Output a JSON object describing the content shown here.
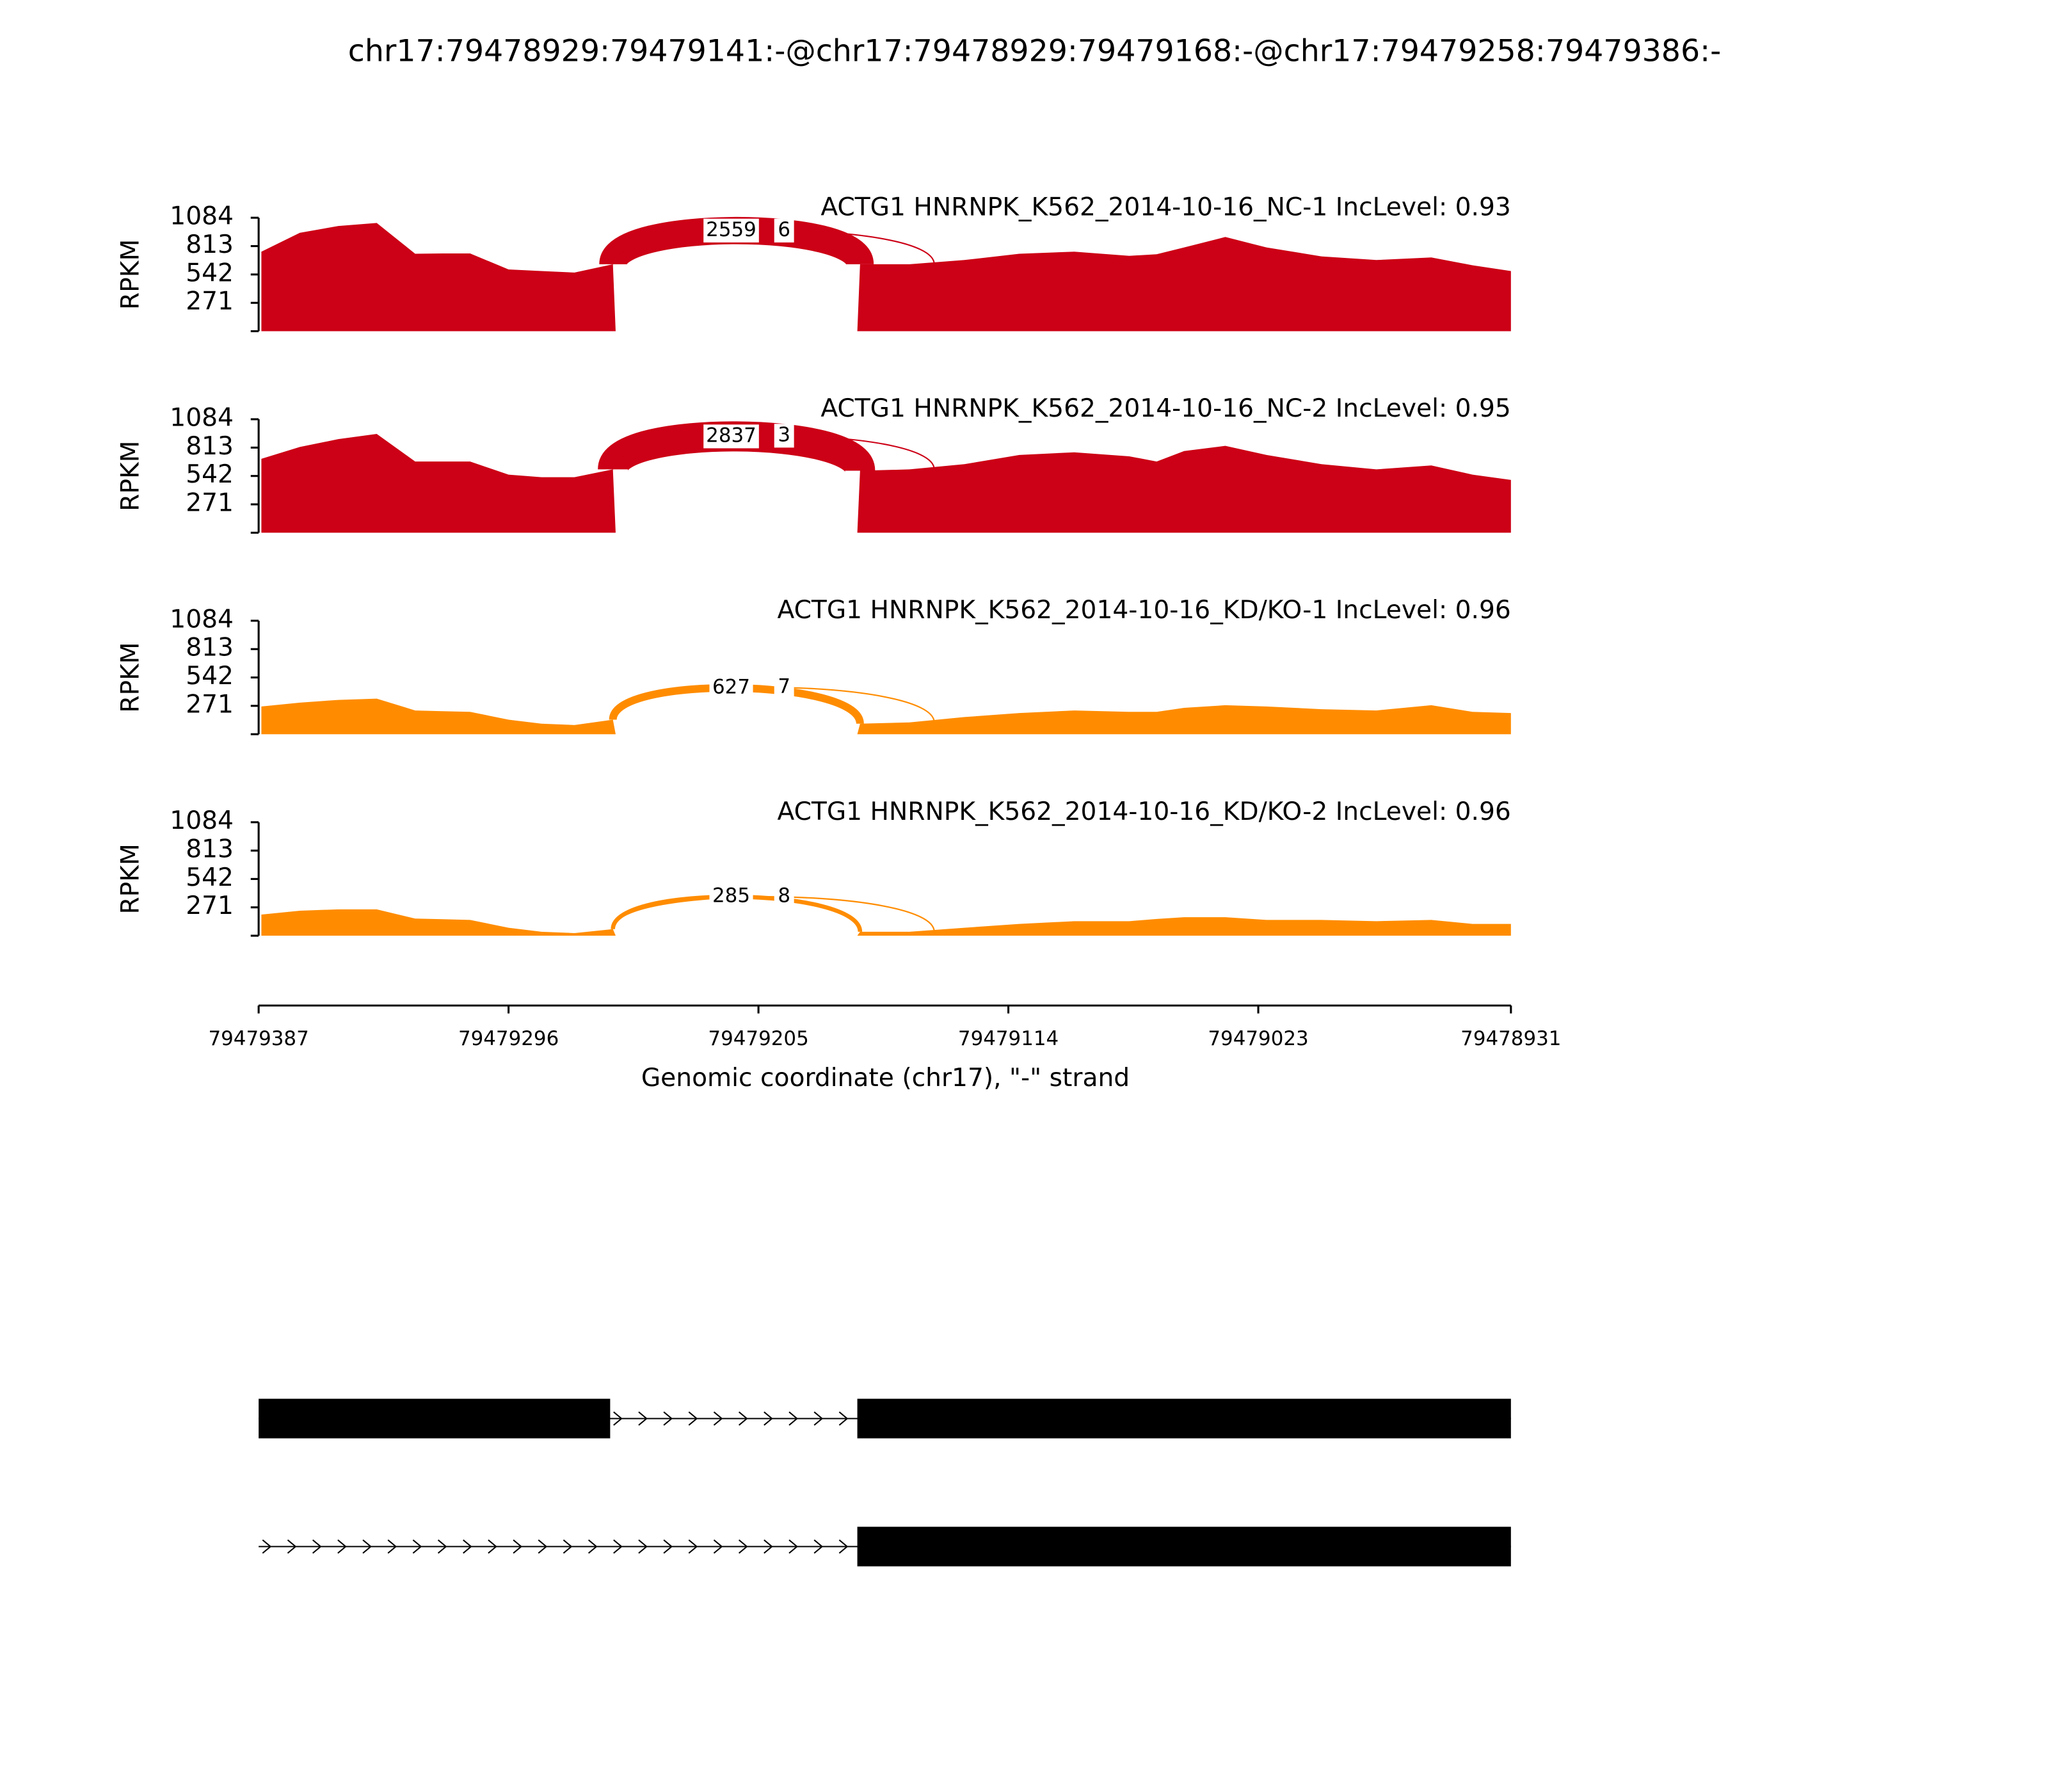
{
  "chart_data": {
    "type": "sashimi",
    "title": "chr17:79478929:79479141:-@chr17:79478929:79479168:-@chr17:79479258:79479386:-",
    "xlabel": "Genomic coordinate (chr17), \"-\" strand",
    "ylabel": "RPKM",
    "xlim": [
      79479387,
      79478931
    ],
    "xticks": [
      79479387,
      79479296,
      79479205,
      79479114,
      79479023,
      79478931
    ],
    "ylim": [
      0,
      1084
    ],
    "yticks": [
      271,
      542,
      813,
      1084
    ],
    "x": [
      79479386,
      79479372,
      79479358,
      79479344,
      79479330,
      79479320,
      79479310,
      79479296,
      79479284,
      79479272,
      79479258,
      79479257,
      79479169,
      79479168,
      79479150,
      79479130,
      79479110,
      79479090,
      79479070,
      79479060,
      79479050,
      79479035,
      79479020,
      79479000,
      79478980,
      79478960,
      79478945,
      79478931
    ],
    "junctions": [
      {
        "start": 79479258,
        "end": 79479168
      },
      {
        "start": 79479258,
        "end": 79479141
      }
    ],
    "panels": [
      {
        "label": "ACTG1 HNRNPK_K562_2014-10-16_NC-1 IncLevel: 0.93",
        "color": "#cc0016",
        "values": [
          760,
          940,
          1005,
          1034,
          740,
          743,
          743,
          590,
          575,
          560,
          640,
          0,
          0,
          640,
          640,
          680,
          740,
          760,
          720,
          735,
          800,
          900,
          800,
          715,
          680,
          705,
          630,
          575
        ],
        "junction_counts": [
          2559,
          6
        ]
      },
      {
        "label": "ACTG1 HNRNPK_K562_2014-10-16_NC-2 IncLevel: 0.95",
        "color": "#cc0016",
        "values": [
          706,
          819,
          894,
          944,
          680,
          680,
          680,
          555,
          530,
          530,
          605,
          0,
          0,
          592,
          605,
          655,
          743,
          768,
          730,
          680,
          780,
          830,
          743,
          655,
          605,
          643,
          555,
          504
        ],
        "junction_counts": [
          2837,
          3
        ]
      },
      {
        "label": "ACTG1 HNRNPK_K562_2014-10-16_KD/KO-1 IncLevel: 0.96",
        "color": "#ff8c00",
        "values": [
          265,
          302,
          328,
          340,
          227,
          220,
          214,
          139,
          101,
          88,
          139,
          0,
          0,
          101,
          113,
          164,
          202,
          227,
          214,
          214,
          252,
          277,
          265,
          239,
          227,
          277,
          214,
          202
        ],
        "junction_counts": [
          627,
          7
        ]
      },
      {
        "label": "ACTG1 HNRNPK_K562_2014-10-16_KD/KO-2 IncLevel: 0.96",
        "color": "#ff8c00",
        "values": [
          202,
          239,
          252,
          252,
          164,
          158,
          151,
          76,
          38,
          25,
          63,
          0,
          0,
          38,
          38,
          76,
          113,
          139,
          139,
          160,
          177,
          177,
          151,
          151,
          139,
          151,
          113,
          113
        ],
        "junction_counts": [
          285,
          8
        ]
      }
    ],
    "transcripts": [
      {
        "extent": [
          79479387,
          79478931
        ],
        "exons": [
          [
            79479387,
            79479259
          ],
          [
            79479169,
            79478931
          ]
        ]
      },
      {
        "extent": [
          79479387,
          79478931
        ],
        "exons": [
          [
            79479169,
            79478931
          ]
        ]
      }
    ]
  }
}
